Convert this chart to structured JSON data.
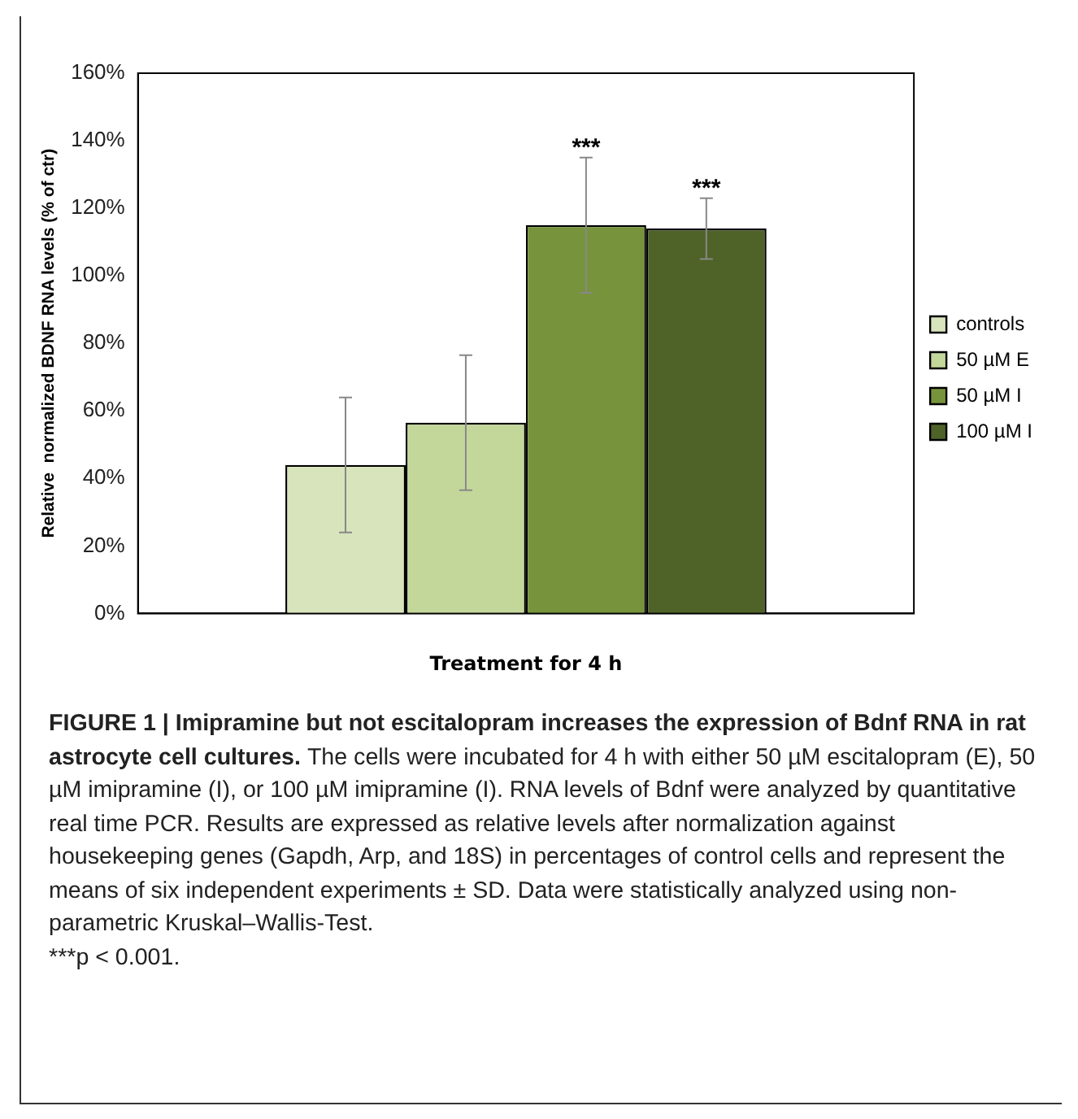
{
  "chart_data": {
    "type": "bar",
    "xlabel": "Treatment for 4 h",
    "ylabel": "Relative  normalized BDNF RNA levels (% of ctr)",
    "categories": [
      null
    ],
    "series": [
      {
        "name": "controls",
        "color": "#d8e4bc",
        "values": [
          44
        ],
        "errors": [
          20
        ]
      },
      {
        "name": "50 µM E",
        "color": "#c4d79b",
        "values": [
          56.5
        ],
        "errors": [
          20
        ]
      },
      {
        "name": "50 µM I",
        "color": "#77933c",
        "values": [
          115
        ],
        "errors": [
          20
        ],
        "value_labels": [
          "***"
        ]
      },
      {
        "name": "100 µM I",
        "color": "#4f6228",
        "values": [
          114
        ],
        "errors": [
          9
        ],
        "value_labels": [
          "***"
        ]
      }
    ],
    "ylim": [
      0,
      160
    ],
    "yticks": [
      {
        "value": 0,
        "label": "0%"
      },
      {
        "value": 20,
        "label": "20%"
      },
      {
        "value": 40,
        "label": "40%"
      },
      {
        "value": 60,
        "label": "60%"
      },
      {
        "value": 80,
        "label": "80%"
      },
      {
        "value": 100,
        "label": "100%"
      },
      {
        "value": 120,
        "label": "120%"
      },
      {
        "value": 140,
        "label": "140%"
      },
      {
        "value": 160,
        "label": "160%"
      }
    ],
    "grid": false,
    "legend": "right",
    "annotations": [
      "FIGURE 1 | Imipramine but not escitalopram increases the expression of Bdnf RNA in rat astrocyte cell cultures.",
      "The cells were incubated for 4 h with either 50 µM escitalopram (E), 50 µM imipramine (I), or 100 µM imipramine (I). RNA levels of Bdnf were analyzed by quantitative real time PCR. Results are expressed as relative levels after normalization against housekeeping genes (Gapdh, Arp, and 18S) in percentages of control cells and represent the means of six independent experiments ± SD. Data were statistically analyzed using non-parametric Kruskal–Wallis-Test.",
      "***p < 0.001."
    ]
  }
}
